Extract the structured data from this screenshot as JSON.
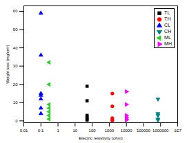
{
  "chart_data": {
    "type": "scatter",
    "xlabel": "Electric resistivity (ohm)",
    "ylabel": "Weight loss (mg/cm²)",
    "log": "x",
    "grid": false,
    "legend": "upper right",
    "xlim": [
      0.01,
      10000000
    ],
    "xticks": [
      0.01,
      0.1,
      1,
      10,
      100,
      1000,
      10000,
      100000,
      1000000,
      {
        "value": 10000000,
        "label": "1E7"
      }
    ],
    "ylim": [
      -1,
      63
    ],
    "yticks": [
      0,
      10,
      20,
      30,
      40,
      50,
      60
    ],
    "series": [
      {
        "name": "TL",
        "color": "#000000",
        "marker": "square",
        "x": [
          50,
          50,
          50,
          50,
          50,
          50
        ],
        "values": [
          19,
          11,
          3,
          2,
          1,
          0.5
        ]
      },
      {
        "name": "TH",
        "color": "#ff0000",
        "marker": "circle",
        "x": [
          1500,
          1500,
          1500,
          1500,
          1500
        ],
        "values": [
          15,
          8,
          1.5,
          0.5,
          0.3
        ]
      },
      {
        "name": "CL",
        "color": "#0000ff",
        "marker": "triangle-up",
        "x": [
          0.1,
          0.1,
          0.1,
          0.1,
          0.1,
          0.1,
          0.1
        ],
        "values": [
          59,
          36,
          15,
          14,
          12,
          7,
          4
        ]
      },
      {
        "name": "CH",
        "color": "#008080",
        "marker": "triangle-down",
        "x": [
          700000,
          700000,
          700000,
          700000,
          700000
        ],
        "values": [
          12,
          4,
          3,
          1,
          0.5
        ]
      },
      {
        "name": "ML",
        "color": "#33cc33",
        "marker": "triangle-left",
        "x": [
          0.3,
          0.3,
          0.3,
          0.3,
          0.3,
          0.3,
          0.3
        ],
        "values": [
          32,
          20,
          9,
          7,
          5,
          3,
          1
        ]
      },
      {
        "name": "MH",
        "color": "#ff00ff",
        "marker": "triangle-right",
        "x": [
          10000,
          10000,
          10000,
          10000,
          10000,
          10000
        ],
        "values": [
          16,
          9,
          3,
          2,
          1,
          0.5
        ]
      }
    ]
  }
}
